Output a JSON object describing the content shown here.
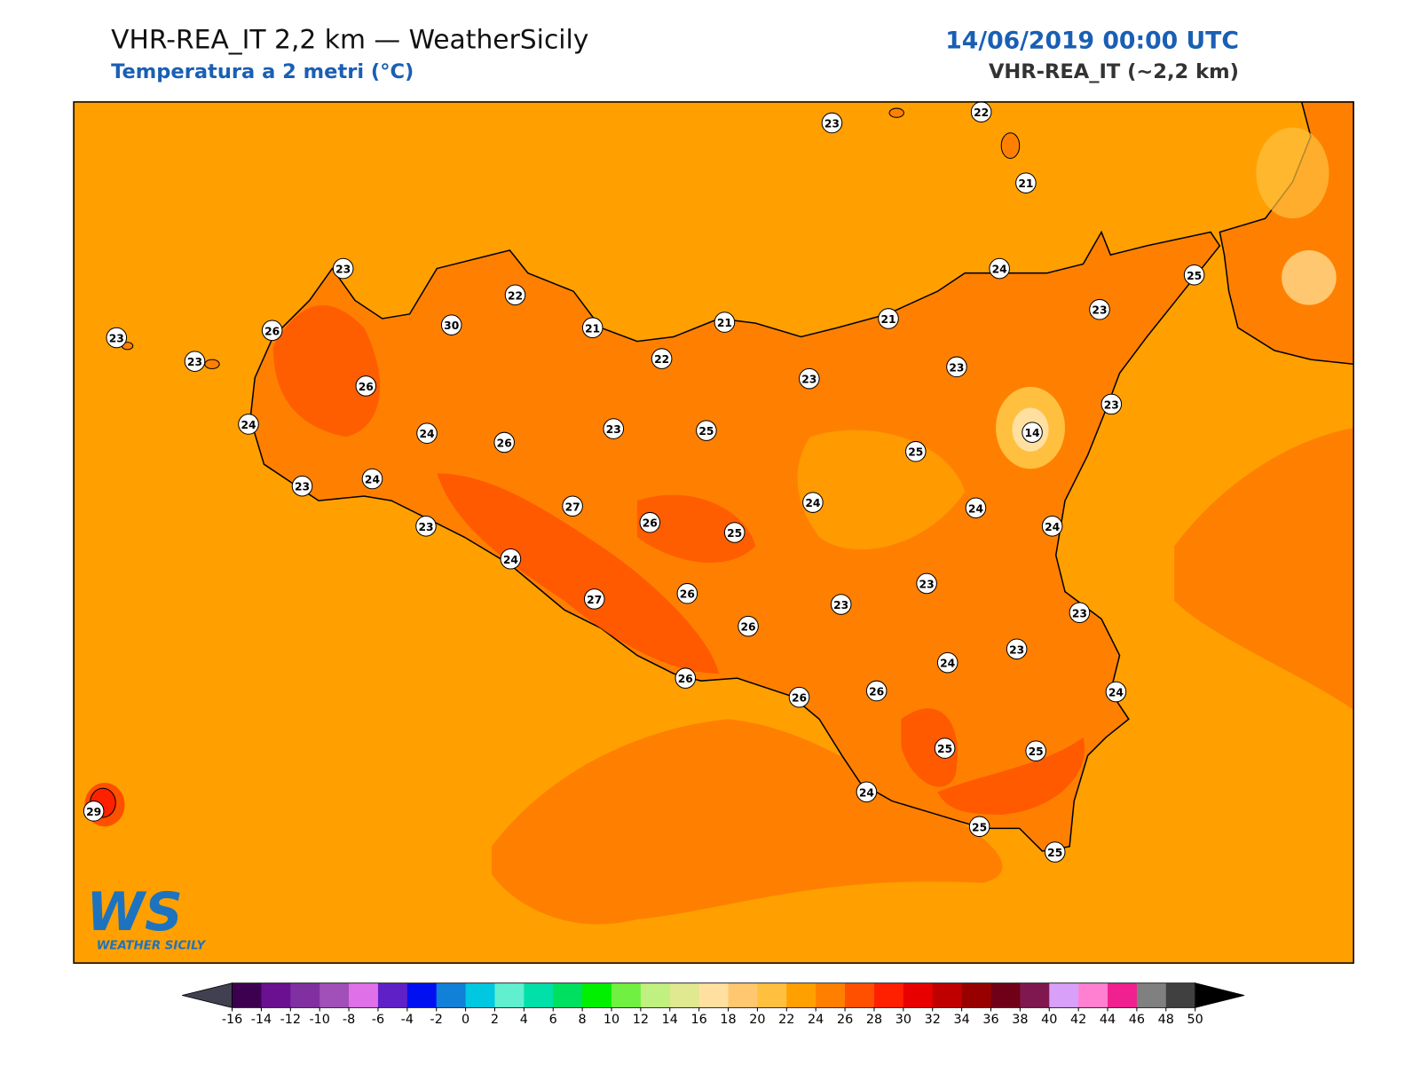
{
  "header": {
    "title": "VHR-REA_IT 2,2 km — WeatherSicily",
    "subtitle": "Temperatura a 2 metri (°C)",
    "date": "14/06/2019 00:00 UTC",
    "model": "VHR-REA_IT (~2,2 km)"
  },
  "logo": {
    "mark": "WS",
    "text": "WEATHER SICILY"
  },
  "stations": [
    23,
    22,
    21,
    23,
    22,
    30,
    21,
    21,
    21,
    24,
    25,
    23,
    23,
    26,
    23,
    22,
    23,
    23,
    26,
    23,
    14,
    24,
    24,
    26,
    23,
    25,
    25,
    24,
    23,
    24,
    24,
    24,
    27,
    26,
    25,
    23,
    24,
    23,
    23,
    23,
    27,
    26,
    26,
    23,
    24,
    26,
    26,
    26,
    24,
    25,
    25,
    24,
    29,
    25,
    25
  ],
  "colorbar": {
    "lim": [
      -16,
      50
    ],
    "ticks": [
      -16,
      -14,
      -12,
      -10,
      -8,
      -6,
      -4,
      -2,
      0,
      2,
      4,
      6,
      8,
      10,
      12,
      14,
      16,
      18,
      20,
      22,
      24,
      26,
      28,
      30,
      32,
      34,
      36,
      38,
      40,
      42,
      44,
      46,
      48,
      50
    ],
    "colors": [
      "#3d0050",
      "#6a1090",
      "#8030a0",
      "#a050b8",
      "#e070e8",
      "#6020c8",
      "#0010f0",
      "#1080d8",
      "#00c8e0",
      "#60f0d0",
      "#00e0a8",
      "#00e060",
      "#00f000",
      "#70f040",
      "#c0f080",
      "#e0e890",
      "#ffe0a0",
      "#ffc870",
      "#ffc040",
      "#ffa000",
      "#ff8000",
      "#ff5000",
      "#ff2000",
      "#e80000",
      "#c00000",
      "#980000",
      "#700018",
      "#801850",
      "#d8a0f8",
      "#ff80d0",
      "#f02090",
      "#808080",
      "#404040"
    ],
    "under_color": "#404050",
    "over_color": "#000000"
  }
}
